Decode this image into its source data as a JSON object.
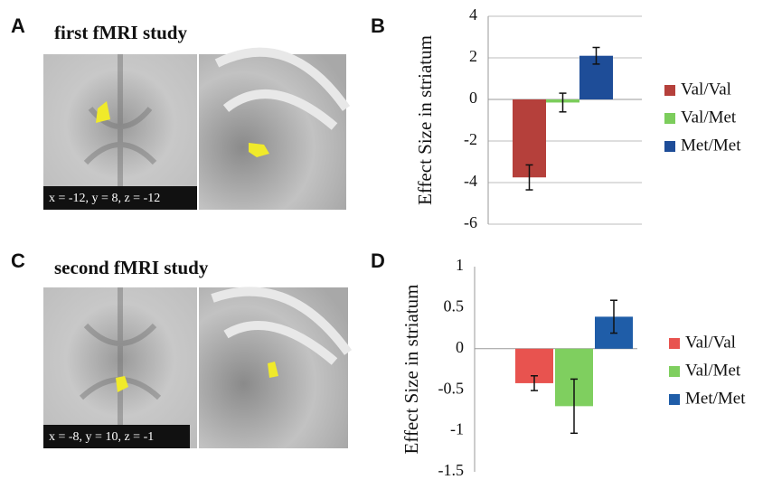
{
  "panels": {
    "labels": [
      "A",
      "B",
      "C",
      "D"
    ],
    "studies": [
      "first fMRI study",
      "second fMRI study"
    ],
    "coordinates": [
      "x = -12, y = 8, z = -12",
      "x = -8, y = 10, z = -1"
    ]
  },
  "chart_data": [
    {
      "type": "bar",
      "ylabel": "Effect Size in striatum",
      "ylim": [
        -6,
        4
      ],
      "yticks": [
        4,
        2,
        0,
        -2,
        -4,
        -6
      ],
      "grid": true,
      "series": [
        {
          "name": "Val/Val",
          "color": "#b5403b",
          "values": [
            -3.75
          ],
          "errors": [
            0.6
          ]
        },
        {
          "name": "Val/Met",
          "color": "#7ccd5c",
          "values": [
            -0.15
          ],
          "errors": [
            0.45
          ]
        },
        {
          "name": "Met/Met",
          "color": "#1e4d98",
          "values": [
            2.1
          ],
          "errors": [
            0.4
          ]
        }
      ]
    },
    {
      "type": "bar",
      "ylabel": "Effect Size in striatum",
      "ylim": [
        -1.5,
        1
      ],
      "yticks": [
        1,
        0.5,
        0,
        -0.5,
        -1,
        -1.5
      ],
      "grid": false,
      "series": [
        {
          "name": "Val/Val",
          "color": "#e8534f",
          "values": [
            -0.42
          ],
          "errors": [
            0.09
          ]
        },
        {
          "name": "Val/Met",
          "color": "#7fcf5f",
          "values": [
            -0.7
          ],
          "errors": [
            0.33
          ]
        },
        {
          "name": "Met/Met",
          "color": "#1f5da8",
          "values": [
            0.39
          ],
          "errors": [
            0.2
          ]
        }
      ]
    }
  ]
}
